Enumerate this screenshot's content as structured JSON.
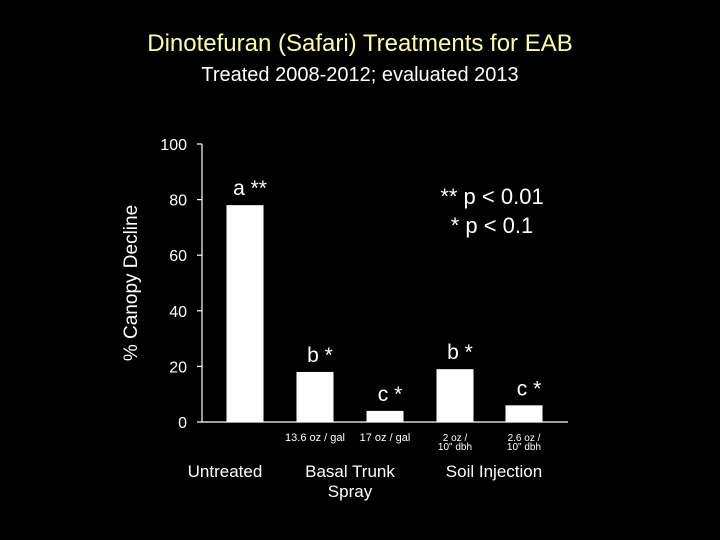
{
  "colors": {
    "background": "#000000",
    "title": "#ffff99",
    "text": "#ffffff",
    "bars": "#ffffff"
  },
  "header": {
    "title": "Dinotefuran (Safari) Treatments for EAB",
    "subtitle": "Treated 2008-2012; evaluated 2013"
  },
  "chart_data": {
    "type": "bar",
    "ylabel": "% Canopy Decline",
    "xlabel": "",
    "ylim": [
      0,
      100
    ],
    "yticks": [
      0,
      20,
      40,
      60,
      80,
      100
    ],
    "categories": [
      "Untreated",
      "13.6 oz / gal",
      "17 oz / gal",
      "2 oz / 10\" dbh",
      "2.6 oz / 10\" dbh"
    ],
    "tick_labels": [
      [],
      [
        "13.6 oz / gal"
      ],
      [
        "17 oz / gal"
      ],
      [
        "2 oz /",
        "10\" dbh"
      ],
      [
        "2.6 oz /",
        "10\" dbh"
      ]
    ],
    "values": [
      78,
      18,
      4,
      19,
      6
    ],
    "bar_labels": [
      "a **",
      "b *",
      "c *",
      "b *",
      "c *"
    ],
    "groups": [
      {
        "label": [
          "Untreated"
        ],
        "members": [
          0
        ]
      },
      {
        "label": [
          "Basal Trunk",
          "Spray"
        ],
        "members": [
          1,
          2
        ]
      },
      {
        "label": [
          "Soil  Injection"
        ],
        "members": [
          3,
          4
        ]
      }
    ],
    "annotations": [
      "** p < 0.01",
      "* p < 0.1"
    ],
    "grid": false,
    "legend": "none"
  }
}
